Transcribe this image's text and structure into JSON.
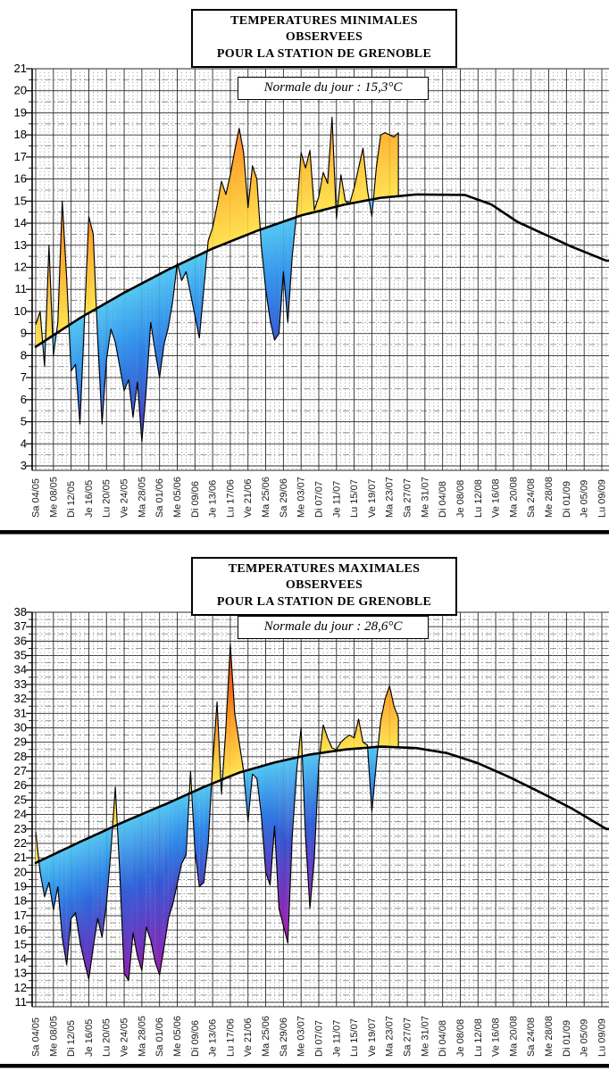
{
  "station": "GRENOBLE",
  "chart_data": [
    {
      "type": "area",
      "title_line1": "TEMPERATURES MINIMALES OBSERVEES",
      "title_line2": "POUR LA STATION DE GRENOBLE",
      "normale_label": "Normale du jour : 15,3°C",
      "normale_value": 15.3,
      "ylabel": "°C",
      "ylim": [
        3,
        21
      ],
      "grid": "on",
      "y_ticks": [
        21,
        20,
        19,
        18,
        17,
        16,
        15,
        14,
        13,
        12,
        11,
        10,
        9,
        8,
        7,
        6,
        5,
        4,
        3
      ],
      "x_tick_step_days": 4,
      "x_tick_labels": [
        "Sa 04/05",
        "Me 08/05",
        "Di 12/05",
        "Je 16/05",
        "Lu 20/05",
        "Ve 24/05",
        "Ma 28/05",
        "Sa 01/06",
        "Me 05/06",
        "Di 09/06",
        "Je 13/06",
        "Lu 17/06",
        "Ve 21/06",
        "Ma 25/06",
        "Sa 29/06",
        "Me 03/07",
        "Di 07/07",
        "Je 11/07",
        "Lu 15/07",
        "Ve 19/07",
        "Ma 23/07",
        "Sa 27/07",
        "Me 31/07",
        "Di 04/08",
        "Je 08/08",
        "Lu 12/08",
        "Ve 16/08",
        "Ma 20/08",
        "Sa 24/08",
        "Me 28/08",
        "Di 01/09",
        "Je 05/09",
        "Lu 09/09"
      ],
      "series": [
        {
          "name": "temperature observee",
          "values": [
            9.4,
            10.0,
            7.5,
            13.0,
            8.0,
            9.5,
            15.0,
            11.5,
            7.3,
            7.6,
            4.9,
            9.5,
            14.3,
            13.5,
            8.8,
            4.9,
            7.8,
            9.2,
            8.6,
            7.5,
            6.4,
            6.9,
            5.2,
            6.8,
            4.1,
            6.5,
            9.5,
            8.2,
            7.0,
            8.5,
            9.3,
            10.5,
            12.2,
            11.4,
            11.8,
            10.8,
            9.8,
            8.8,
            11.0,
            13.2,
            13.8,
            14.8,
            15.9,
            15.3,
            16.2,
            17.3,
            18.3,
            17.2,
            14.7,
            16.6,
            16.0,
            13.0,
            11.0,
            9.6,
            8.7,
            9.0,
            11.8,
            9.5,
            12.5,
            14.5,
            17.2,
            16.5,
            17.3,
            14.6,
            15.2,
            16.3,
            15.8,
            18.8,
            14.2,
            16.2,
            15.0,
            14.9,
            15.6,
            16.5,
            17.4,
            15.5,
            14.3,
            16.5,
            18.0,
            18.1,
            18.0,
            17.9,
            18.1
          ]
        },
        {
          "name": "normale",
          "anchors": [
            [
              0,
              8.4
            ],
            [
              10,
              9.7
            ],
            [
              20,
              10.85
            ],
            [
              30,
              11.9
            ],
            [
              40,
              12.85
            ],
            [
              50,
              13.65
            ],
            [
              60,
              14.35
            ],
            [
              70,
              14.85
            ],
            [
              78,
              15.15
            ],
            [
              86,
              15.3
            ],
            [
              97,
              15.28
            ],
            [
              103,
              14.85
            ],
            [
              109,
              14.05
            ],
            [
              115,
              13.5
            ],
            [
              121,
              12.95
            ],
            [
              129,
              12.3
            ]
          ]
        }
      ]
    },
    {
      "type": "area",
      "title_line1": "TEMPERATURES MAXIMALES OBSERVEES",
      "title_line2": "POUR LA STATION DE GRENOBLE",
      "normale_label": "Normale du jour : 28,6°C",
      "normale_value": 28.6,
      "ylabel": "°C",
      "ylim": [
        11,
        38
      ],
      "grid": "on",
      "y_ticks": [
        38,
        37,
        36,
        35,
        34,
        33,
        32,
        31,
        30,
        29,
        28,
        27,
        26,
        25,
        24,
        23,
        22,
        21,
        20,
        19,
        18,
        17,
        16,
        15,
        14,
        13,
        12,
        11
      ],
      "x_tick_step_days": 4,
      "x_tick_labels": [
        "Sa 04/05",
        "Me 08/05",
        "Di 12/05",
        "Je 16/05",
        "Lu 20/05",
        "Ve 24/05",
        "Ma 28/05",
        "Sa 01/06",
        "Me 05/06",
        "Di 09/06",
        "Je 13/06",
        "Lu 17/06",
        "Ve 21/06",
        "Ma 25/06",
        "Sa 29/06",
        "Me 03/07",
        "Di 07/07",
        "Je 11/07",
        "Lu 15/07",
        "Ve 19/07",
        "Ma 23/07",
        "Sa 27/07",
        "Me 31/07",
        "Di 04/08",
        "Je 08/08",
        "Lu 12/08",
        "Ve 16/08",
        "Ma 20/08",
        "Sa 24/08",
        "Me 28/08",
        "Di 01/09",
        "Je 05/09",
        "Lu 09/09"
      ],
      "series": [
        {
          "name": "temperature observee",
          "values": [
            22.8,
            20.0,
            18.3,
            19.3,
            17.4,
            19.0,
            15.5,
            13.6,
            16.8,
            17.2,
            15.2,
            13.8,
            12.6,
            14.8,
            16.8,
            15.5,
            17.8,
            21.5,
            25.9,
            20.0,
            13.0,
            12.5,
            15.8,
            14.2,
            13.2,
            16.2,
            15.3,
            13.8,
            12.9,
            14.8,
            16.8,
            17.8,
            19.2,
            20.6,
            21.2,
            27.0,
            21.5,
            19.0,
            19.3,
            22.0,
            27.5,
            31.8,
            25.4,
            30.0,
            35.8,
            31.0,
            29.0,
            27.0,
            23.5,
            26.8,
            26.5,
            24.0,
            20.0,
            19.1,
            23.2,
            17.5,
            16.3,
            15.1,
            22.5,
            27.0,
            30.0,
            22.5,
            17.5,
            21.0,
            27.5,
            30.2,
            29.3,
            28.6,
            28.5,
            29.0,
            29.3,
            29.5,
            29.3,
            30.6,
            29.0,
            28.8,
            24.2,
            27.5,
            30.5,
            32.0,
            32.9,
            31.5,
            30.7
          ]
        },
        {
          "name": "normale",
          "anchors": [
            [
              0,
              20.65
            ],
            [
              10,
              22.1
            ],
            [
              20,
              23.5
            ],
            [
              30,
              24.8
            ],
            [
              38,
              25.9
            ],
            [
              46,
              26.9
            ],
            [
              54,
              27.6
            ],
            [
              62,
              28.15
            ],
            [
              70,
              28.5
            ],
            [
              78,
              28.7
            ],
            [
              86,
              28.6
            ],
            [
              93,
              28.25
            ],
            [
              100,
              27.55
            ],
            [
              107,
              26.6
            ],
            [
              114,
              25.55
            ],
            [
              121,
              24.45
            ],
            [
              129,
              23.0
            ]
          ]
        }
      ]
    }
  ],
  "colormap": {
    "above_normale": [
      [
        0,
        "#ffe350"
      ],
      [
        1.5,
        "#ffcb42"
      ],
      [
        3,
        "#ffb12f"
      ],
      [
        4.5,
        "#ff9423"
      ],
      [
        6,
        "#f9731b"
      ],
      [
        8,
        "#e84611"
      ],
      [
        10,
        "#d61408"
      ]
    ],
    "below_normale": [
      [
        0,
        "#55c8f2"
      ],
      [
        1.5,
        "#3fa8ef"
      ],
      [
        3,
        "#2e86e8"
      ],
      [
        4.5,
        "#2e66dd"
      ],
      [
        6,
        "#3c4ecb"
      ],
      [
        7.5,
        "#5635b5"
      ],
      [
        9,
        "#7129b7"
      ],
      [
        11,
        "#9221b3"
      ],
      [
        13,
        "#b81bad"
      ],
      [
        15,
        "#d016a8"
      ]
    ]
  },
  "style_colors": {
    "grid_major": "#2a2a2a",
    "grid_minor": "#7a7a7a",
    "curve": "#000000"
  }
}
